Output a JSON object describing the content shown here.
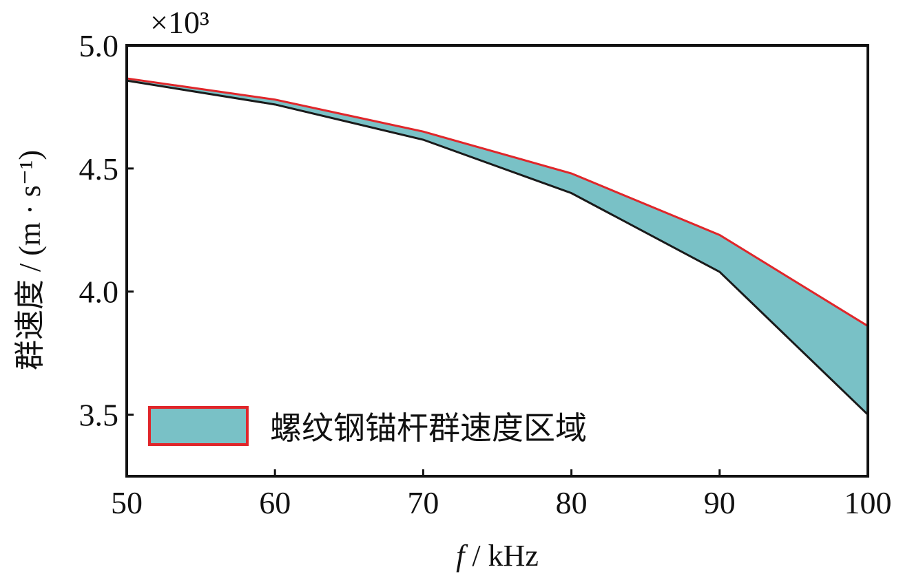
{
  "chart_data": {
    "type": "area",
    "title": "",
    "xlabel_italic": "f",
    "xlabel_unit": " / kHz",
    "ylabel": "群速度 / (m · s⁻¹)",
    "y_multiplier": "×10³",
    "xlim": [
      50,
      100
    ],
    "ylim": [
      3.25,
      5.0
    ],
    "x_ticks": [
      "50",
      "60",
      "70",
      "80",
      "90",
      "100"
    ],
    "x_tick_values": [
      50,
      60,
      70,
      80,
      90,
      100
    ],
    "y_ticks": [
      "3.5",
      "4.0",
      "4.5",
      "5.0"
    ],
    "y_tick_values": [
      3.5,
      4.0,
      4.5,
      5.0
    ],
    "grid": false,
    "legend": {
      "placement": "bottom-left",
      "label": "螺纹钢锚杆群速度区域"
    },
    "x": [
      50,
      60,
      70,
      80,
      90,
      100
    ],
    "series": [
      {
        "name": "upper",
        "values": [
          4.866,
          4.78,
          4.65,
          4.48,
          4.23,
          3.86
        ]
      },
      {
        "name": "lower",
        "values": [
          4.857,
          4.76,
          4.617,
          4.4,
          4.08,
          3.5
        ]
      }
    ],
    "colors": {
      "fill": "#79c1c6",
      "upper_line": "#e0262a",
      "lower_line": "#1a1a1a",
      "legend_edge": "#e0262a"
    }
  }
}
